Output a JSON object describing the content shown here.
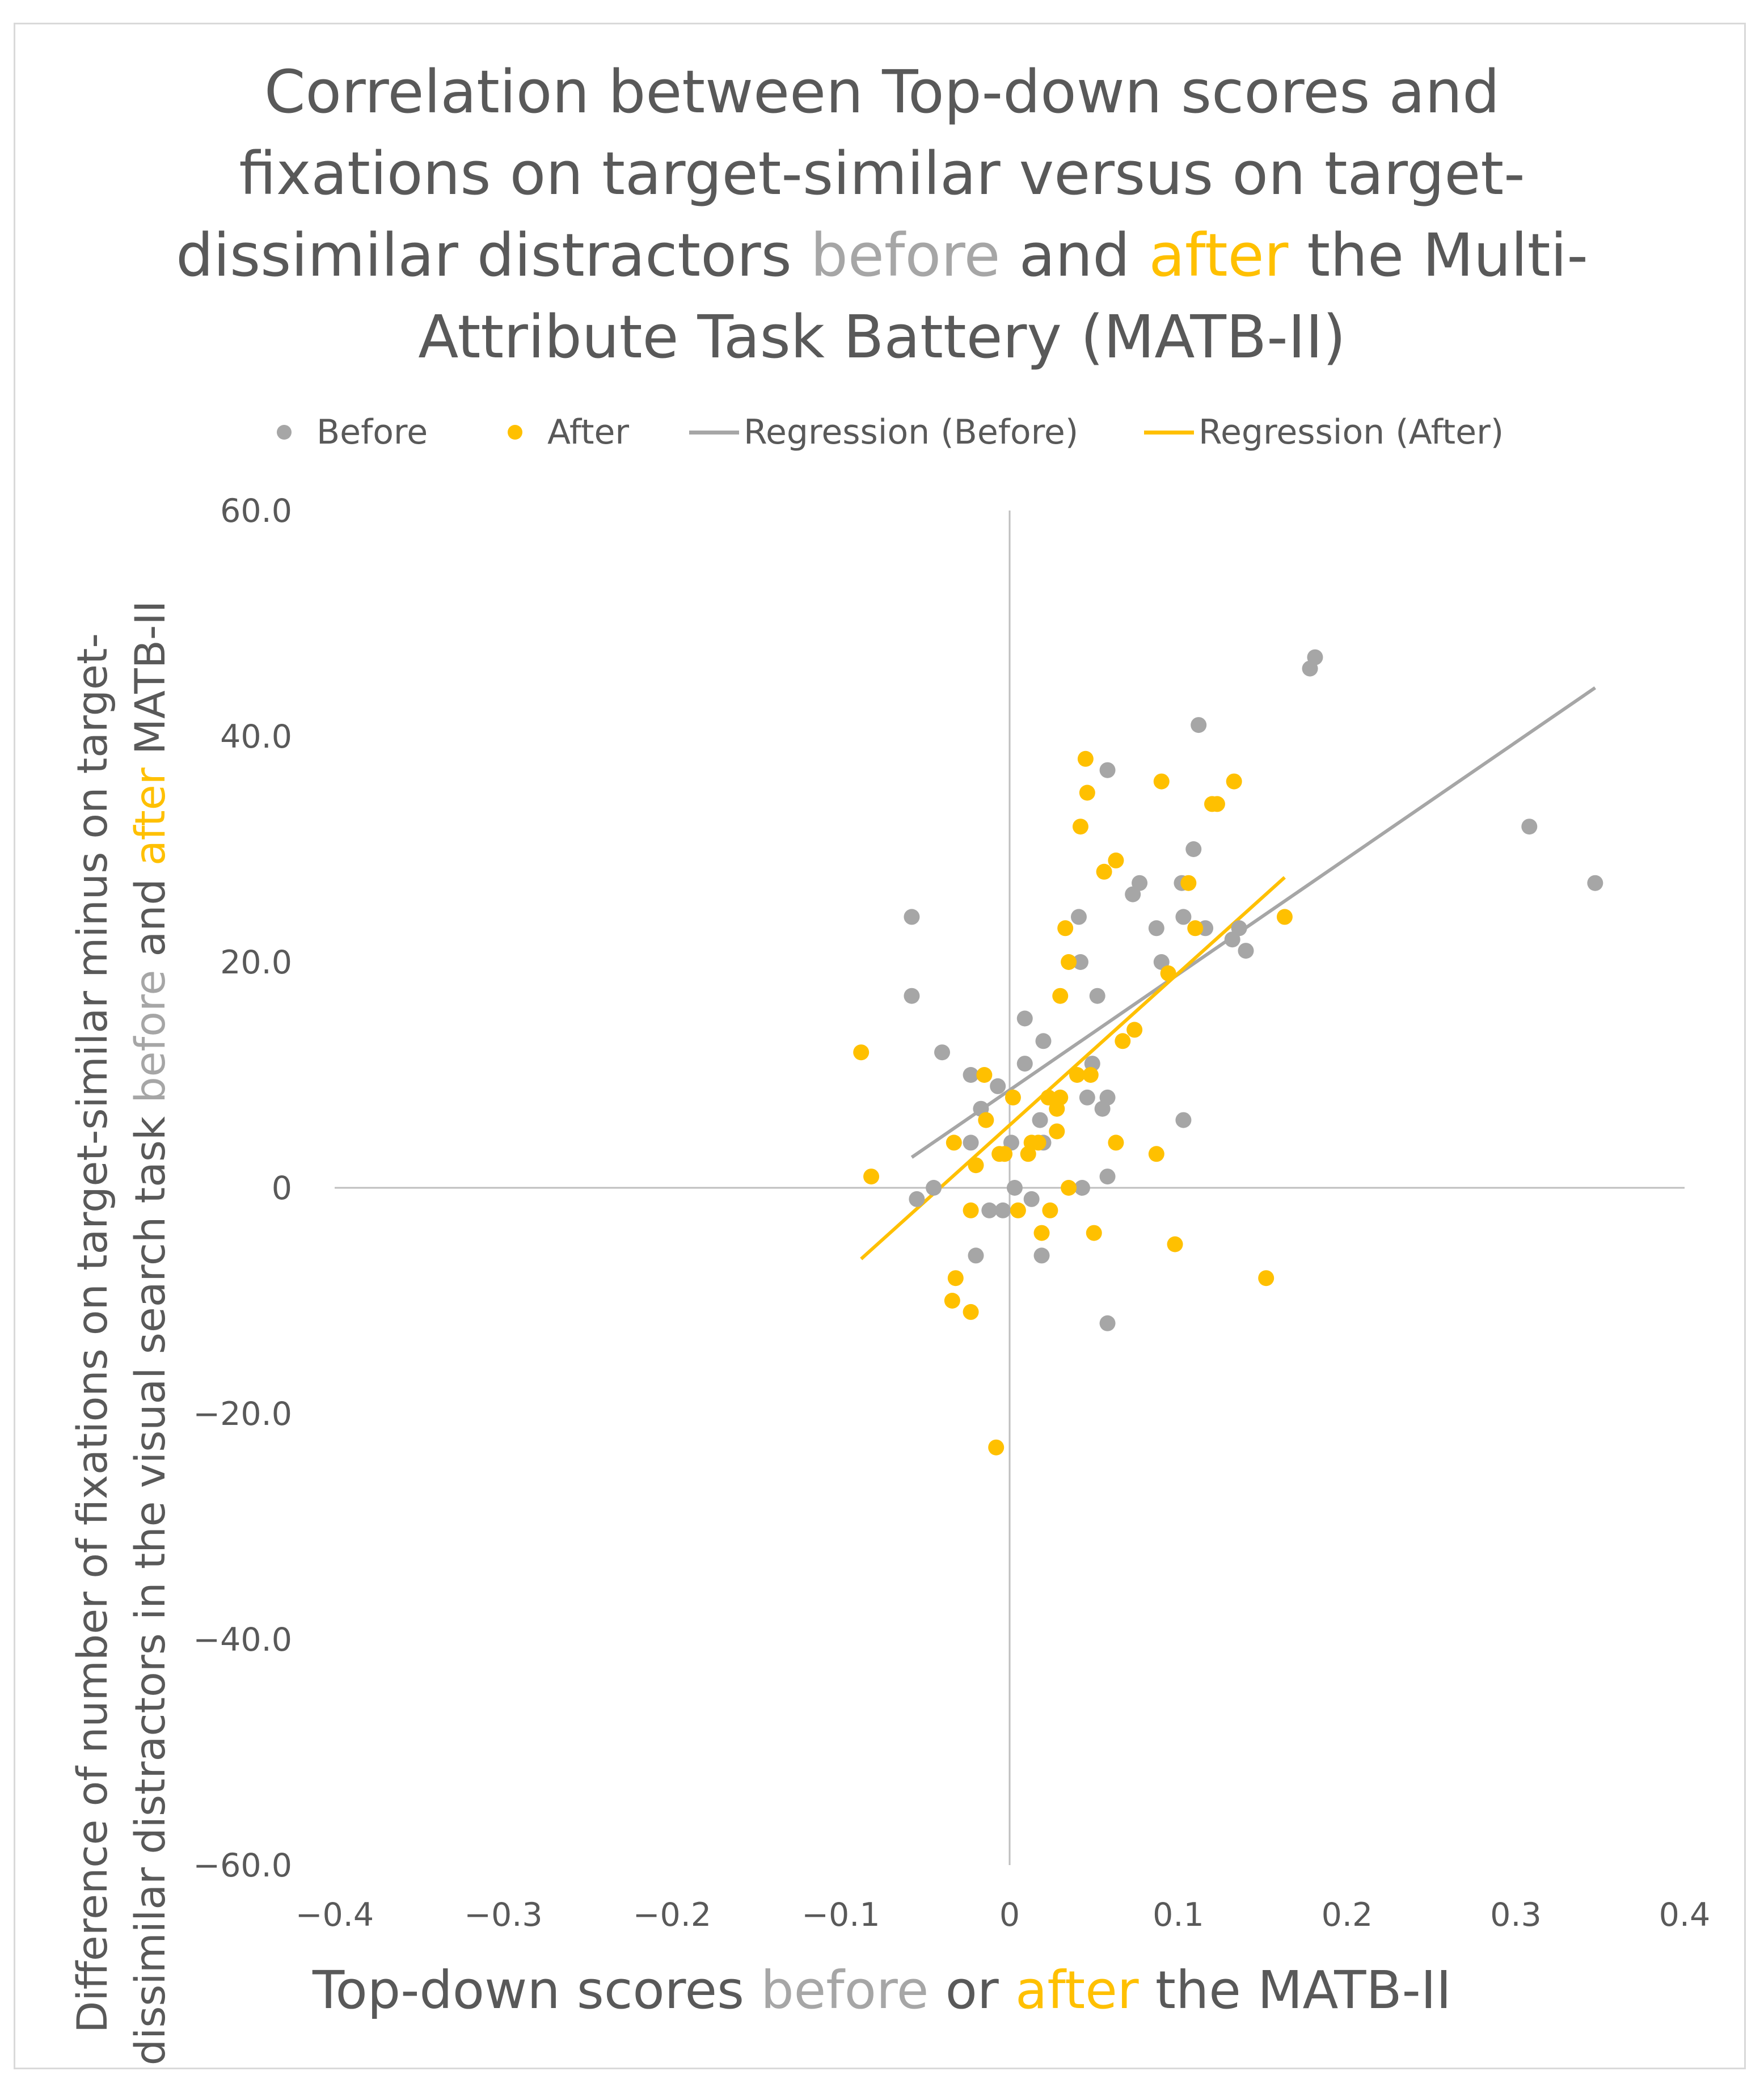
{
  "colors": {
    "before": "#a6a6a6",
    "after": "#ffc000",
    "text": "#595959",
    "axis": "#bfbfbf",
    "frame": "#d9d9d9"
  },
  "title": {
    "line1": "Correlation between Top-down scores and",
    "line2": "fixations on target-similar versus on target-",
    "line3_a": "dissimilar distractors ",
    "line3_before": "before",
    "line3_b": " and ",
    "line3_after": "after",
    "line3_c": " the Multi-",
    "line4": "Attribute Task Battery (MATB-II)"
  },
  "legend": {
    "before": "Before",
    "after": "After",
    "reg_before": "Regression (Before)",
    "reg_after": "Regression (After)"
  },
  "y_title": {
    "line1": "Difference of number of fixations on target-similar minus on target-",
    "line2_a": "dissimilar distractors in the visual search task ",
    "line2_before": "before",
    "line2_b": " and ",
    "line2_after": "after",
    "line2_c": " MATB-II"
  },
  "x_title": {
    "a": "Top-down scores ",
    "before": "before",
    "b": " or ",
    "after": "after",
    "c": " the MATB-II"
  },
  "chart_data": {
    "type": "scatter",
    "title": "Correlation between Top-down scores and fixations on target-similar versus on target-dissimilar distractors before and after the Multi-Attribute Task Battery (MATB-II)",
    "xlabel": "Top-down scores before or after the MATB-II",
    "ylabel": "Difference of number of fixations on target-similar minus on target-dissimilar distractors in the visual search task before and after MATB-II",
    "xlim": [
      -0.4,
      0.4
    ],
    "ylim": [
      -60,
      60
    ],
    "x_ticks": [
      -0.4,
      -0.3,
      -0.2,
      -0.1,
      0,
      0.1,
      0.2,
      0.3,
      0.4
    ],
    "x_tick_labels": [
      "−0.4",
      "−0.3",
      "−0.2",
      "−0.1",
      "0",
      "0.1",
      "0.2",
      "0.3",
      "0.4"
    ],
    "y_ticks": [
      60,
      40,
      20,
      0,
      -20,
      -40,
      -60
    ],
    "y_tick_labels": [
      "60.0",
      "40.0",
      "20.0",
      "0",
      "−20.0",
      "−40.0",
      "−60.0"
    ],
    "legend_position": "top",
    "series": [
      {
        "name": "Before",
        "kind": "points",
        "points": [
          [
            -0.058,
            24
          ],
          [
            -0.058,
            17
          ],
          [
            -0.055,
            -1
          ],
          [
            -0.045,
            0
          ],
          [
            -0.04,
            12
          ],
          [
            -0.023,
            10
          ],
          [
            -0.023,
            4
          ],
          [
            -0.02,
            -6
          ],
          [
            -0.017,
            7
          ],
          [
            -0.012,
            -2
          ],
          [
            -0.007,
            9
          ],
          [
            -0.004,
            -2
          ],
          [
            0.001,
            4
          ],
          [
            0.003,
            0
          ],
          [
            0.009,
            15
          ],
          [
            0.009,
            11
          ],
          [
            0.013,
            -1
          ],
          [
            0.018,
            6
          ],
          [
            0.019,
            -6
          ],
          [
            0.02,
            13
          ],
          [
            0.02,
            4
          ],
          [
            0.041,
            24
          ],
          [
            0.042,
            20
          ],
          [
            0.043,
            0
          ],
          [
            0.046,
            8
          ],
          [
            0.049,
            11
          ],
          [
            0.052,
            17
          ],
          [
            0.055,
            7
          ],
          [
            0.058,
            37
          ],
          [
            0.058,
            8
          ],
          [
            0.058,
            1
          ],
          [
            0.058,
            -12
          ],
          [
            0.073,
            26
          ],
          [
            0.077,
            27
          ],
          [
            0.087,
            23
          ],
          [
            0.09,
            20
          ],
          [
            0.102,
            27
          ],
          [
            0.103,
            24
          ],
          [
            0.103,
            6
          ],
          [
            0.109,
            30
          ],
          [
            0.112,
            41
          ],
          [
            0.116,
            23
          ],
          [
            0.132,
            22
          ],
          [
            0.136,
            23
          ],
          [
            0.14,
            21
          ],
          [
            0.178,
            46
          ],
          [
            0.181,
            47
          ],
          [
            0.308,
            32
          ],
          [
            0.347,
            27
          ]
        ]
      },
      {
        "name": "After",
        "kind": "points",
        "points": [
          [
            -0.088,
            12
          ],
          [
            -0.082,
            1
          ],
          [
            -0.034,
            -10
          ],
          [
            -0.033,
            4
          ],
          [
            -0.032,
            -8
          ],
          [
            -0.023,
            -2
          ],
          [
            -0.023,
            -11
          ],
          [
            -0.02,
            2
          ],
          [
            -0.015,
            10
          ],
          [
            -0.014,
            6
          ],
          [
            -0.008,
            -23
          ],
          [
            -0.006,
            3
          ],
          [
            -0.003,
            3
          ],
          [
            0.002,
            8
          ],
          [
            0.005,
            -2
          ],
          [
            0.011,
            3
          ],
          [
            0.013,
            4
          ],
          [
            0.017,
            4
          ],
          [
            0.019,
            -4
          ],
          [
            0.023,
            8
          ],
          [
            0.024,
            -2
          ],
          [
            0.028,
            7
          ],
          [
            0.028,
            5
          ],
          [
            0.03,
            8
          ],
          [
            0.03,
            17
          ],
          [
            0.033,
            23
          ],
          [
            0.035,
            20
          ],
          [
            0.035,
            0
          ],
          [
            0.04,
            10
          ],
          [
            0.042,
            32
          ],
          [
            0.045,
            38
          ],
          [
            0.046,
            35
          ],
          [
            0.048,
            10
          ],
          [
            0.05,
            -4
          ],
          [
            0.056,
            28
          ],
          [
            0.063,
            29
          ],
          [
            0.063,
            4
          ],
          [
            0.067,
            13
          ],
          [
            0.074,
            14
          ],
          [
            0.087,
            3
          ],
          [
            0.09,
            36
          ],
          [
            0.094,
            19
          ],
          [
            0.098,
            -5
          ],
          [
            0.106,
            27
          ],
          [
            0.11,
            23
          ],
          [
            0.12,
            34
          ],
          [
            0.123,
            34
          ],
          [
            0.133,
            36
          ],
          [
            0.152,
            -8
          ],
          [
            0.163,
            24
          ]
        ]
      },
      {
        "name": "Regression (Before)",
        "kind": "line",
        "points": [
          [
            -0.058,
            2.7
          ],
          [
            0.347,
            44.3
          ]
        ]
      },
      {
        "name": "Regression (After)",
        "kind": "line",
        "points": [
          [
            -0.088,
            -6.3
          ],
          [
            0.163,
            27.5
          ]
        ]
      }
    ]
  }
}
